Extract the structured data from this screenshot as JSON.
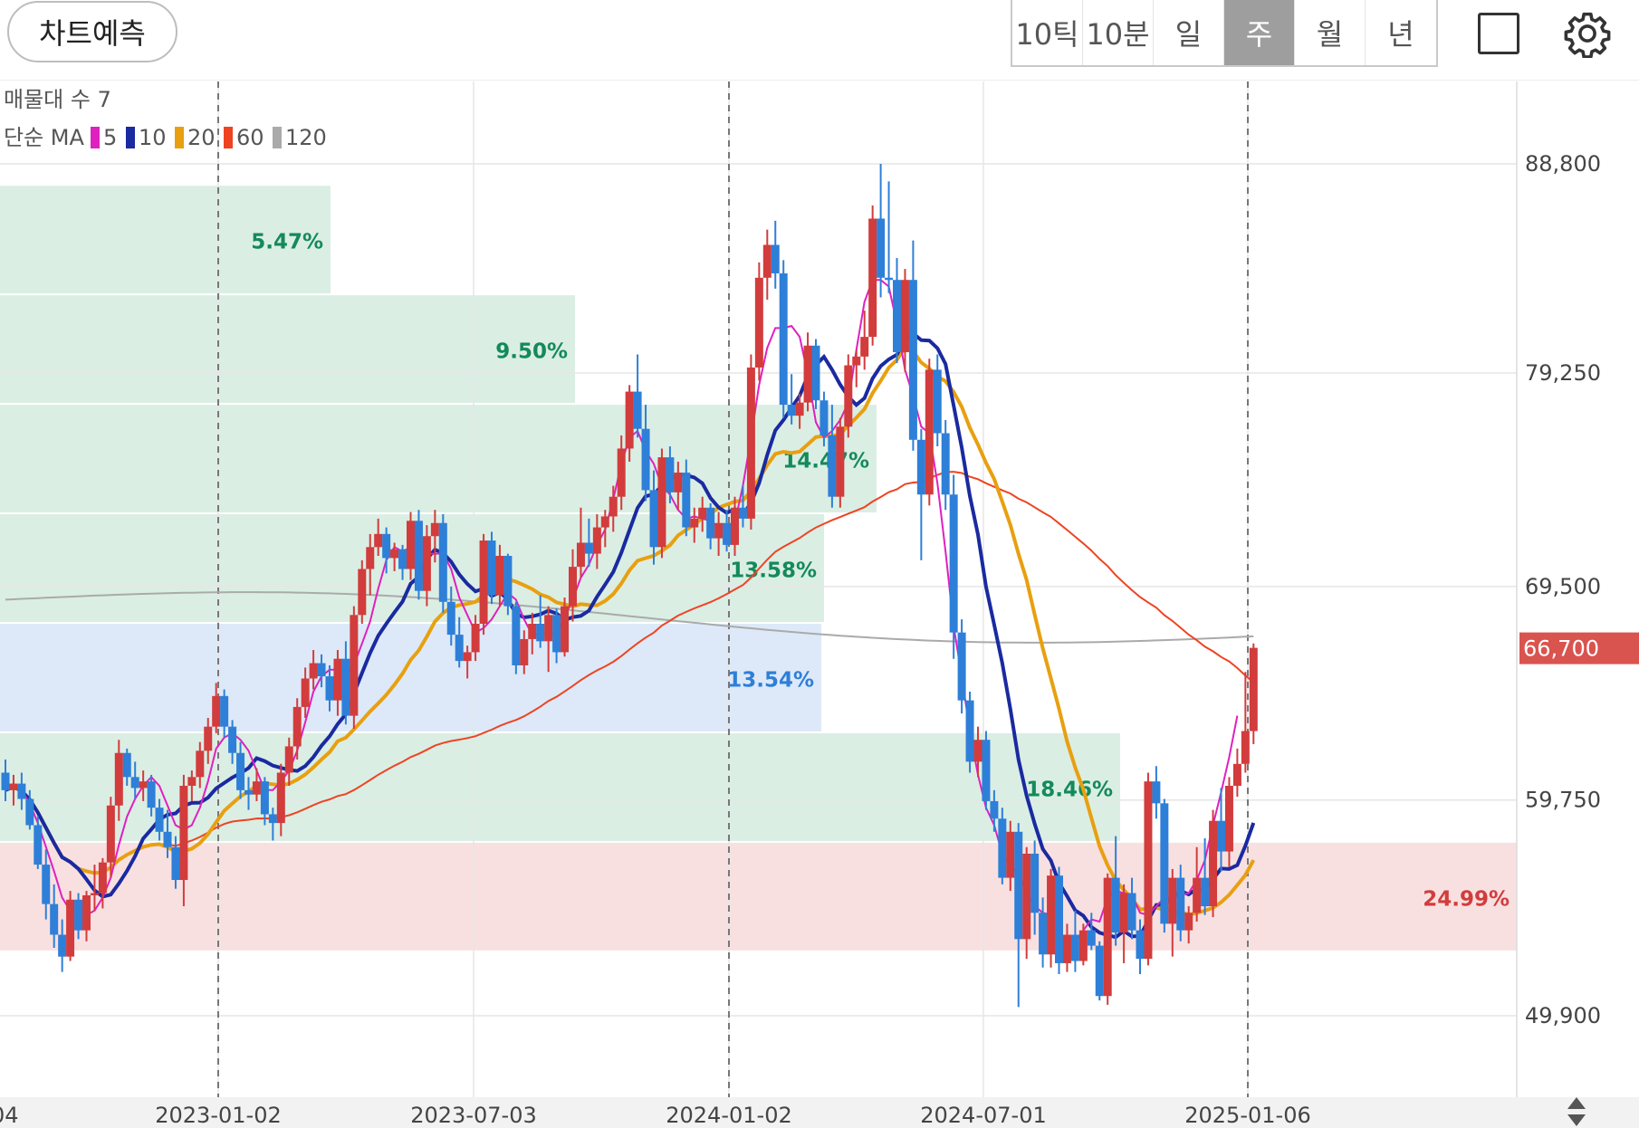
{
  "toolbar": {
    "predict_label": "차트예측",
    "periods": [
      "10틱",
      "10분",
      "일",
      "주",
      "월",
      "년"
    ],
    "active_period": "주",
    "icons": [
      "square-icon",
      "gear-icon"
    ]
  },
  "legend": {
    "volume_profile_label": "매물대 수 7",
    "ma_label": "단순 MA",
    "ma_items": [
      {
        "label": "5",
        "color": "#e020c0"
      },
      {
        "label": "10",
        "color": "#1a2aa0"
      },
      {
        "label": "20",
        "color": "#e8a010"
      },
      {
        "label": "60",
        "color": "#ee4422"
      },
      {
        "label": "120",
        "color": "#aaaaaa"
      }
    ]
  },
  "colors": {
    "up": "#d23c3c",
    "down": "#2e7fd8",
    "zone_green": "#dbeee4",
    "zone_blue": "#dde9f8",
    "zone_red": "#f8e0e1",
    "price_tag": "#d9534f"
  },
  "chart_data": {
    "type": "candlestick",
    "x_tick_labels": [
      "04",
      "2023-01-02",
      "2023-07-03",
      "2024-01-02",
      "2024-07-01",
      "2025-01-06"
    ],
    "y_tick_labels": [
      "88,800",
      "79,250",
      "69,500",
      "59,750",
      "49,900"
    ],
    "y_ticks": [
      88800,
      79250,
      69500,
      59750,
      49900
    ],
    "ylim": [
      46200,
      91200
    ],
    "current_price": 66700,
    "current_price_label": "66,700",
    "volume_profile": [
      {
        "low": 82800,
        "high": 87800,
        "pct": "5.47%",
        "color": "green"
      },
      {
        "low": 77800,
        "high": 82800,
        "pct": "9.50%",
        "color": "green"
      },
      {
        "low": 72800,
        "high": 77800,
        "pct": "14.47%",
        "color": "green"
      },
      {
        "low": 67800,
        "high": 72800,
        "pct": "13.58%",
        "color": "green"
      },
      {
        "low": 62800,
        "high": 67800,
        "pct": "13.54%",
        "color": "blue"
      },
      {
        "low": 57800,
        "high": 62800,
        "pct": "18.46%",
        "color": "green"
      },
      {
        "low": 52800,
        "high": 57800,
        "pct": "24.99%",
        "color": "red"
      }
    ],
    "candles_ohlc": [
      [
        61000,
        61600,
        59700,
        60200
      ],
      [
        60200,
        60900,
        59500,
        60500
      ],
      [
        60500,
        61000,
        59300,
        59800
      ],
      [
        59800,
        60200,
        58400,
        58600
      ],
      [
        58600,
        59000,
        56600,
        56800
      ],
      [
        56800,
        57500,
        54300,
        55000
      ],
      [
        55000,
        55900,
        53000,
        53600
      ],
      [
        53600,
        54300,
        51900,
        52600
      ],
      [
        52600,
        55600,
        52400,
        55200
      ],
      [
        55200,
        55500,
        53400,
        53800
      ],
      [
        53800,
        55600,
        53300,
        55400
      ],
      [
        55400,
        56800,
        54700,
        55500
      ],
      [
        55500,
        57100,
        54800,
        56900
      ],
      [
        56900,
        59900,
        56200,
        59500
      ],
      [
        59500,
        62500,
        58800,
        61900
      ],
      [
        61900,
        62100,
        60400,
        60800
      ],
      [
        60800,
        61500,
        59800,
        60300
      ],
      [
        60300,
        61100,
        59700,
        60600
      ],
      [
        60600,
        60900,
        59000,
        59400
      ],
      [
        59400,
        59800,
        57900,
        58300
      ],
      [
        58300,
        59300,
        57100,
        57600
      ],
      [
        57600,
        58100,
        55700,
        56100
      ],
      [
        56100,
        60900,
        54900,
        60400
      ],
      [
        60400,
        61100,
        59700,
        60800
      ],
      [
        60800,
        62400,
        60300,
        62000
      ],
      [
        62000,
        63500,
        61400,
        63100
      ],
      [
        63100,
        65100,
        62800,
        64500
      ],
      [
        64500,
        64800,
        62600,
        63100
      ],
      [
        63100,
        63400,
        61400,
        61900
      ],
      [
        61900,
        62400,
        59800,
        60200
      ],
      [
        60200,
        60800,
        59300,
        60000
      ],
      [
        60000,
        61200,
        59700,
        60600
      ],
      [
        60600,
        60800,
        58600,
        59100
      ],
      [
        59100,
        59400,
        57900,
        58700
      ],
      [
        58700,
        61400,
        58100,
        61000
      ],
      [
        61000,
        62600,
        60400,
        62200
      ],
      [
        62200,
        64400,
        61600,
        64000
      ],
      [
        64000,
        65800,
        63500,
        65300
      ],
      [
        65300,
        66600,
        64800,
        66000
      ],
      [
        66000,
        66400,
        64900,
        65400
      ],
      [
        65400,
        65900,
        63800,
        64300
      ],
      [
        64300,
        66600,
        63600,
        66200
      ],
      [
        66200,
        67000,
        63200,
        63600
      ],
      [
        63600,
        68600,
        63000,
        68200
      ],
      [
        68200,
        70700,
        67800,
        70300
      ],
      [
        70300,
        71900,
        69100,
        71300
      ],
      [
        71300,
        72600,
        70900,
        71900
      ],
      [
        71900,
        72200,
        70100,
        70800
      ],
      [
        70800,
        71500,
        70200,
        71200
      ],
      [
        71200,
        71400,
        69800,
        70300
      ],
      [
        70300,
        72900,
        69800,
        72500
      ],
      [
        72500,
        73000,
        68900,
        69300
      ],
      [
        69300,
        72300,
        68600,
        71800
      ],
      [
        71800,
        73000,
        70600,
        72400
      ],
      [
        72400,
        72800,
        68300,
        68800
      ],
      [
        68800,
        69500,
        66800,
        67300
      ],
      [
        67300,
        68100,
        65800,
        66100
      ],
      [
        66100,
        66800,
        65300,
        66500
      ],
      [
        66500,
        68200,
        66100,
        67800
      ],
      [
        67800,
        71900,
        67300,
        71600
      ],
      [
        71600,
        72000,
        68700,
        69100
      ],
      [
        69100,
        71400,
        68600,
        70900
      ],
      [
        70900,
        71000,
        68200,
        68600
      ],
      [
        68600,
        68800,
        65500,
        65900
      ],
      [
        65900,
        67500,
        65500,
        67100
      ],
      [
        67100,
        68300,
        66400,
        67800
      ],
      [
        67800,
        69100,
        66700,
        67000
      ],
      [
        67000,
        68600,
        65600,
        68200
      ],
      [
        68200,
        68500,
        66000,
        66500
      ],
      [
        66500,
        69000,
        66300,
        68600
      ],
      [
        68600,
        71200,
        67900,
        70400
      ],
      [
        70400,
        73100,
        69900,
        71500
      ],
      [
        71500,
        72600,
        70400,
        71000
      ],
      [
        71000,
        72800,
        70300,
        72200
      ],
      [
        72200,
        73000,
        71300,
        72700
      ],
      [
        72700,
        74100,
        72000,
        73600
      ],
      [
        73600,
        76400,
        73000,
        75800
      ],
      [
        75800,
        78700,
        75200,
        78400
      ],
      [
        78400,
        80100,
        76300,
        76700
      ],
      [
        76700,
        77800,
        73400,
        73900
      ],
      [
        73900,
        74800,
        70500,
        71300
      ],
      [
        71300,
        75800,
        70800,
        75400
      ],
      [
        75400,
        75900,
        73300,
        73800
      ],
      [
        73800,
        75200,
        73000,
        74700
      ],
      [
        74700,
        75300,
        71800,
        72200
      ],
      [
        72200,
        73100,
        71500,
        72600
      ],
      [
        72600,
        73600,
        72000,
        73100
      ],
      [
        73100,
        73300,
        71200,
        71700
      ],
      [
        71700,
        72900,
        70900,
        72400
      ],
      [
        72400,
        73000,
        71100,
        71400
      ],
      [
        71400,
        73600,
        70900,
        73100
      ],
      [
        73100,
        74100,
        72200,
        72600
      ],
      [
        72600,
        80100,
        72100,
        79500
      ],
      [
        79500,
        84300,
        78900,
        83600
      ],
      [
        83600,
        85800,
        82600,
        85100
      ],
      [
        85100,
        86200,
        83100,
        83800
      ],
      [
        83800,
        84400,
        77200,
        77800
      ],
      [
        77800,
        79200,
        76900,
        77300
      ],
      [
        77300,
        78300,
        76700,
        77900
      ],
      [
        77900,
        81100,
        77500,
        80500
      ],
      [
        80500,
        80800,
        77600,
        78000
      ],
      [
        78000,
        78400,
        75900,
        76400
      ],
      [
        76400,
        77800,
        73100,
        73600
      ],
      [
        73600,
        77200,
        73100,
        76800
      ],
      [
        76800,
        80100,
        76300,
        79600
      ],
      [
        79600,
        80300,
        78600,
        80000
      ],
      [
        80000,
        82100,
        79400,
        80900
      ],
      [
        80900,
        86900,
        80500,
        86300
      ],
      [
        86300,
        88800,
        82700,
        83600
      ],
      [
        83600,
        88000,
        82900,
        83500
      ],
      [
        83500,
        84500,
        79700,
        80200
      ],
      [
        80200,
        84000,
        79300,
        83500
      ],
      [
        83500,
        85300,
        75700,
        76200
      ],
      [
        76200,
        76700,
        70700,
        73700
      ],
      [
        73700,
        79900,
        73200,
        79400
      ],
      [
        79400,
        80100,
        75900,
        76500
      ],
      [
        76500,
        77100,
        73000,
        73700
      ],
      [
        73700,
        74600,
        66200,
        67400
      ],
      [
        67400,
        68000,
        63700,
        64300
      ],
      [
        64300,
        64700,
        61000,
        61500
      ],
      [
        61500,
        63100,
        60800,
        62500
      ],
      [
        62500,
        62900,
        59300,
        59700
      ],
      [
        59700,
        60200,
        58300,
        58900
      ],
      [
        58900,
        59400,
        55900,
        56200
      ],
      [
        56200,
        58800,
        55600,
        58300
      ],
      [
        58300,
        58700,
        50300,
        53400
      ],
      [
        53400,
        57600,
        52500,
        57300
      ],
      [
        57300,
        57900,
        53600,
        54600
      ],
      [
        54600,
        55300,
        52100,
        52700
      ],
      [
        52700,
        56600,
        52100,
        56300
      ],
      [
        56300,
        56700,
        51800,
        52300
      ],
      [
        52300,
        54100,
        51900,
        53600
      ],
      [
        53600,
        54700,
        51900,
        52400
      ],
      [
        52400,
        54100,
        52200,
        53800
      ],
      [
        53800,
        54600,
        52900,
        53100
      ],
      [
        53100,
        53300,
        50600,
        50800
      ],
      [
        50800,
        56400,
        50400,
        56200
      ],
      [
        56200,
        58100,
        53100,
        53700
      ],
      [
        53700,
        55900,
        52300,
        55500
      ],
      [
        55500,
        56200,
        53400,
        53800
      ],
      [
        53800,
        54300,
        51800,
        52500
      ],
      [
        52500,
        61000,
        52200,
        60600
      ],
      [
        60600,
        61300,
        58900,
        59600
      ],
      [
        59600,
        59800,
        53700,
        54100
      ],
      [
        54100,
        56600,
        52600,
        56200
      ],
      [
        56200,
        56800,
        53300,
        53800
      ],
      [
        53800,
        54900,
        53200,
        54600
      ],
      [
        54600,
        57600,
        54200,
        56200
      ],
      [
        56200,
        58000,
        54500,
        54900
      ],
      [
        54900,
        59300,
        54400,
        58800
      ],
      [
        58800,
        60300,
        56500,
        57400
      ],
      [
        57400,
        60800,
        56700,
        60400
      ],
      [
        60400,
        62100,
        59900,
        61400
      ],
      [
        61400,
        65600,
        61000,
        62900
      ],
      [
        62900,
        66900,
        62300,
        66700
      ]
    ],
    "ma": {
      "5": [
        60200,
        60500,
        60200,
        59600,
        58700,
        57600,
        56500,
        55300,
        54700,
        54400,
        54500,
        54700,
        55300,
        56200,
        57700,
        59000,
        59800,
        60400,
        60800,
        60400,
        59500,
        58600,
        58400,
        58600,
        59400,
        60600,
        62100,
        62600,
        62800,
        62500,
        62000,
        61100,
        60200,
        60200,
        60600,
        61100,
        62000,
        63300,
        64700,
        65400,
        65700,
        65700,
        65500,
        65900,
        66900,
        67900,
        69400,
        70700,
        71300,
        71100,
        71300,
        71200,
        71000,
        71000,
        71000,
        70300,
        69000,
        68200,
        67400,
        67600,
        68000,
        68600,
        69200,
        68900,
        68000,
        67300,
        67300,
        67400,
        67300,
        68100,
        68900,
        69900,
        70500,
        71400,
        72100,
        73500,
        75100,
        76300,
        76600,
        75700,
        75100,
        74100,
        73700,
        73000,
        72600,
        72700,
        72600,
        72500,
        72200,
        72300,
        72400,
        74100,
        76300,
        78700,
        80400,
        81300,
        81300,
        81400,
        80900,
        79200,
        77000,
        76300,
        76600,
        77100,
        77900,
        80300,
        82500,
        83500,
        83500,
        83200,
        81500,
        79400,
        78200,
        76800,
        76500,
        74200,
        71100,
        67700,
        65400,
        62900,
        60900,
        59400,
        58600,
        57300,
        56700,
        56400,
        55500,
        54900,
        54600,
        54500,
        53500,
        53500,
        53300,
        53800,
        54300,
        54200,
        55300,
        55600,
        55500,
        55400,
        54600,
        54500,
        54900,
        55300,
        55300,
        55400,
        55500,
        56100,
        57000,
        58600,
        60100,
        61700,
        63600
      ]
    }
  }
}
